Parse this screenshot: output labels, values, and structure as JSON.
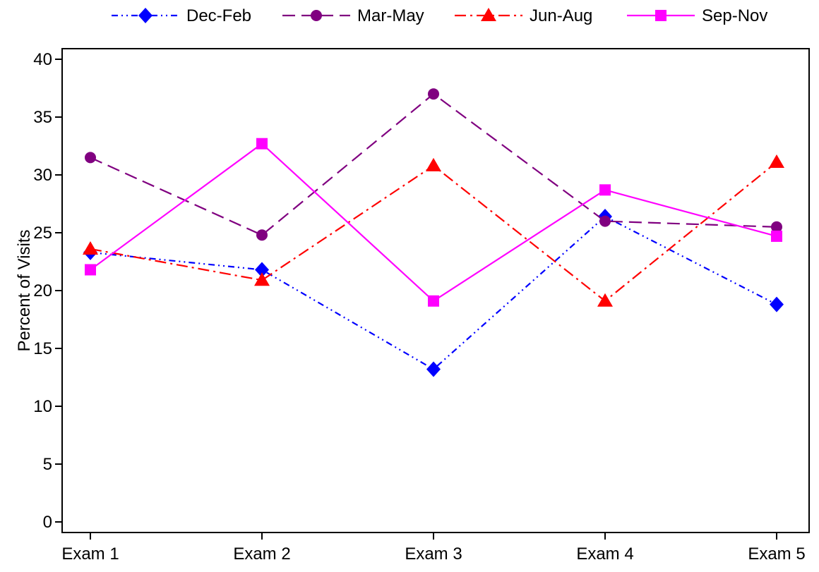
{
  "chart_data": {
    "type": "line",
    "title": "",
    "xlabel": "",
    "ylabel": "Percent of Visits",
    "categories": [
      "Exam 1",
      "Exam 2",
      "Exam 3",
      "Exam 4",
      "Exam 5"
    ],
    "ylim": [
      0,
      40
    ],
    "yticks": [
      "0",
      "5",
      "10",
      "15",
      "20",
      "25",
      "30",
      "35",
      "40"
    ],
    "grid": false,
    "legend_position": "top",
    "series": [
      {
        "name": "Dec-Feb",
        "values": [
          23.3,
          21.8,
          13.2,
          26.4,
          18.8
        ],
        "color": "#0000ff",
        "marker": "diamond",
        "dash": "dash-dot-dot"
      },
      {
        "name": "Mar-May",
        "values": [
          31.5,
          24.8,
          37.0,
          26.0,
          25.5
        ],
        "color": "#800080",
        "marker": "circle",
        "dash": "dash"
      },
      {
        "name": "Jun-Aug",
        "values": [
          23.6,
          20.9,
          30.8,
          19.1,
          31.1
        ],
        "color": "#ff0000",
        "marker": "triangle",
        "dash": "dash-dot"
      },
      {
        "name": "Sep-Nov",
        "values": [
          21.8,
          32.7,
          19.1,
          28.7,
          24.7
        ],
        "color": "#ff00ff",
        "marker": "square",
        "dash": "solid"
      }
    ]
  }
}
